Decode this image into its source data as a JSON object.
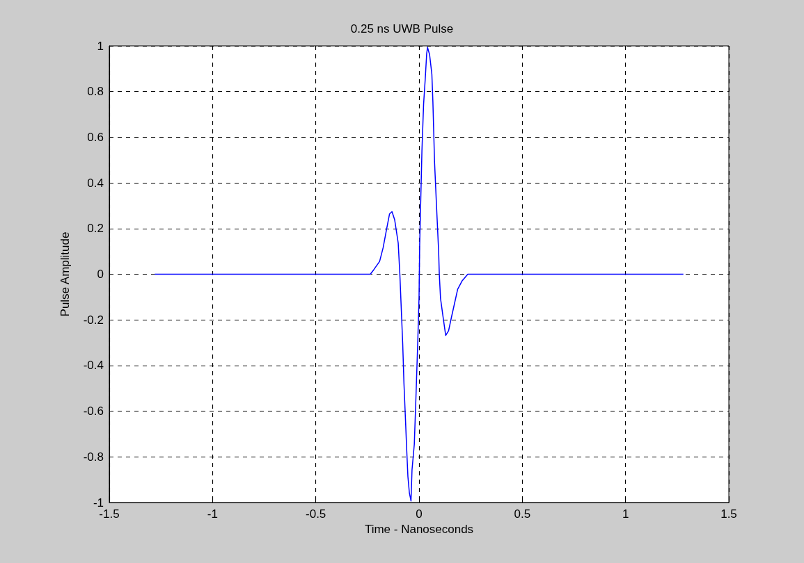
{
  "chart_data": {
    "type": "line",
    "title": "0.25 ns UWB Pulse",
    "xlabel": "Time - Nanoseconds",
    "ylabel": "Pulse Amplitude",
    "x": [
      -1.28,
      -0.236,
      -0.219,
      -0.191,
      -0.174,
      -0.157,
      -0.143,
      -0.131,
      -0.118,
      -0.101,
      -0.093,
      -0.084,
      -0.079,
      -0.073,
      -0.065,
      -0.06,
      -0.054,
      -0.047,
      -0.039,
      -0.034,
      -0.023,
      -0.015,
      -0.006,
      0,
      0.003,
      0.014,
      0.022,
      0.03,
      0.037,
      0.041,
      0.051,
      0.062,
      0.067,
      0.075,
      0.084,
      0.095,
      0.098,
      0.104,
      0.118,
      0.129,
      0.143,
      0.157,
      0.172,
      0.187,
      0.208,
      0.236,
      1.28
    ],
    "series": [
      {
        "color": "#0000ff",
        "values": [
          0,
          0,
          0.02,
          0.056,
          0.116,
          0.198,
          0.264,
          0.274,
          0.238,
          0.137,
          0,
          -0.198,
          -0.309,
          -0.481,
          -0.653,
          -0.765,
          -0.886,
          -0.957,
          -0.993,
          -0.856,
          -0.745,
          -0.537,
          -0.289,
          -0.1,
          0.128,
          0.542,
          0.745,
          0.856,
          0.967,
          0.993,
          0.962,
          0.876,
          0.755,
          0.492,
          0.31,
          0.096,
          0,
          -0.106,
          -0.198,
          -0.268,
          -0.248,
          -0.188,
          -0.127,
          -0.066,
          -0.03,
          0,
          0
        ]
      }
    ],
    "xlim": [
      -1.5,
      1.5
    ],
    "xticks": [
      -1.5,
      -1,
      -0.5,
      0,
      0.5,
      1,
      1.5
    ],
    "ylim": [
      -1,
      1
    ],
    "yticks": [
      -1,
      -0.8,
      -0.6,
      -0.4,
      -0.2,
      0,
      0.2,
      0.4,
      0.6,
      0.8,
      1
    ],
    "grid": true,
    "marker": "none",
    "line_style": "solid"
  }
}
